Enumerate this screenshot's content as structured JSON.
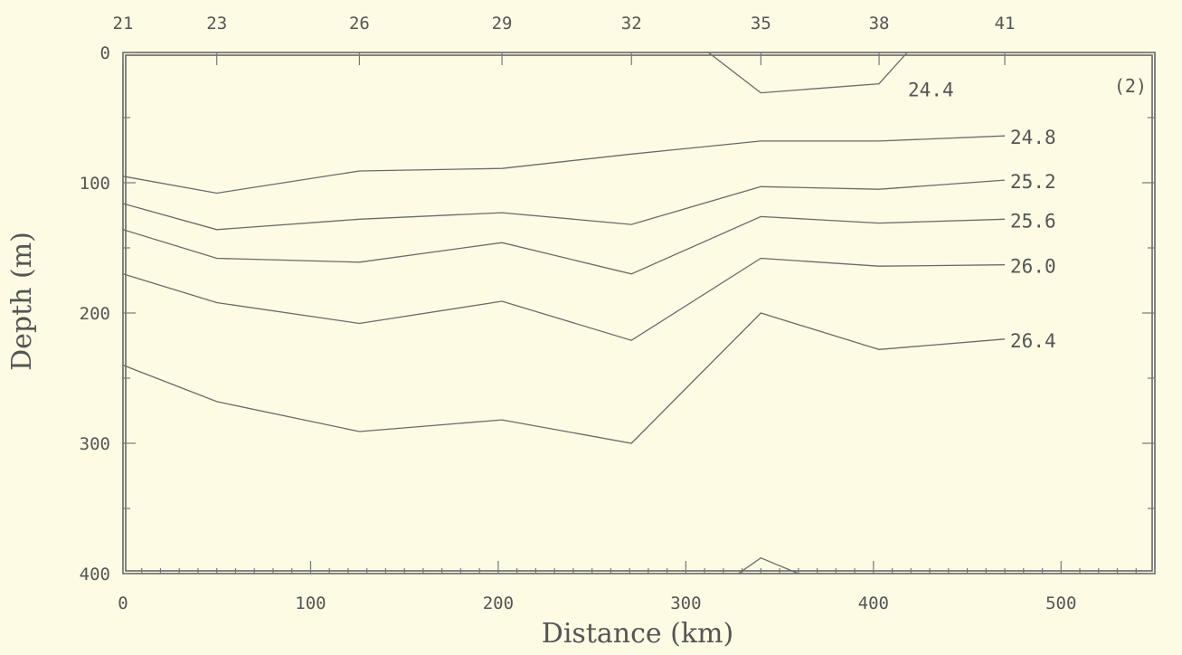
{
  "chart_data": {
    "type": "line",
    "xlabel": "Distance (km)",
    "ylabel": "Depth (m)",
    "panel_id": "(2)",
    "xlim": [
      0,
      550
    ],
    "ylim": [
      400,
      0
    ],
    "x_ticks": [
      0,
      100,
      200,
      300,
      400,
      500
    ],
    "x_tick_labels": [
      "0",
      "100",
      "200",
      "300",
      "400",
      "500"
    ],
    "y_ticks": [
      0,
      100,
      200,
      300,
      400
    ],
    "y_tick_labels": [
      "0",
      "100",
      "200",
      "300",
      "400"
    ],
    "stations": {
      "labels": [
        "21",
        "23",
        "26",
        "29",
        "32",
        "35",
        "38",
        "41"
      ],
      "x": [
        0,
        50,
        126,
        202,
        271,
        340,
        403,
        470
      ]
    },
    "series": [
      {
        "name": "24.4",
        "x": [
          312,
          340,
          403,
          418
        ],
        "y": [
          0,
          31,
          24,
          0
        ]
      },
      {
        "name": "24.8",
        "x": [
          0,
          50,
          126,
          202,
          271,
          340,
          403,
          470
        ],
        "y": [
          95,
          108,
          91,
          89,
          78,
          68,
          68,
          64
        ]
      },
      {
        "name": "25.2",
        "x": [
          0,
          50,
          126,
          202,
          271,
          340,
          403,
          470
        ],
        "y": [
          116,
          136,
          128,
          123,
          132,
          103,
          105,
          98
        ]
      },
      {
        "name": "25.6",
        "x": [
          0,
          50,
          126,
          202,
          271,
          340,
          403,
          470
        ],
        "y": [
          136,
          158,
          161,
          146,
          170,
          126,
          131,
          128
        ]
      },
      {
        "name": "26.0",
        "x": [
          0,
          50,
          126,
          202,
          271,
          340,
          403,
          470
        ],
        "y": [
          170,
          192,
          208,
          191,
          221,
          158,
          164,
          163
        ]
      },
      {
        "name": "26.4",
        "x": [
          0,
          50,
          126,
          202,
          271,
          340,
          403,
          470
        ],
        "y": [
          240,
          268,
          291,
          282,
          300,
          200,
          228,
          220
        ]
      },
      {
        "name": "",
        "x": [
          328,
          340,
          360
        ],
        "y": [
          400,
          388,
          400
        ]
      }
    ],
    "contour_labels": [
      {
        "text": "24.4",
        "series": 0
      },
      {
        "text": "24.8",
        "series": 1
      },
      {
        "text": "25.2",
        "series": 2
      },
      {
        "text": "25.6",
        "series": 3
      },
      {
        "text": "26.0",
        "series": 4
      },
      {
        "text": "26.4",
        "series": 5
      }
    ],
    "grid": false,
    "legend": "none"
  }
}
